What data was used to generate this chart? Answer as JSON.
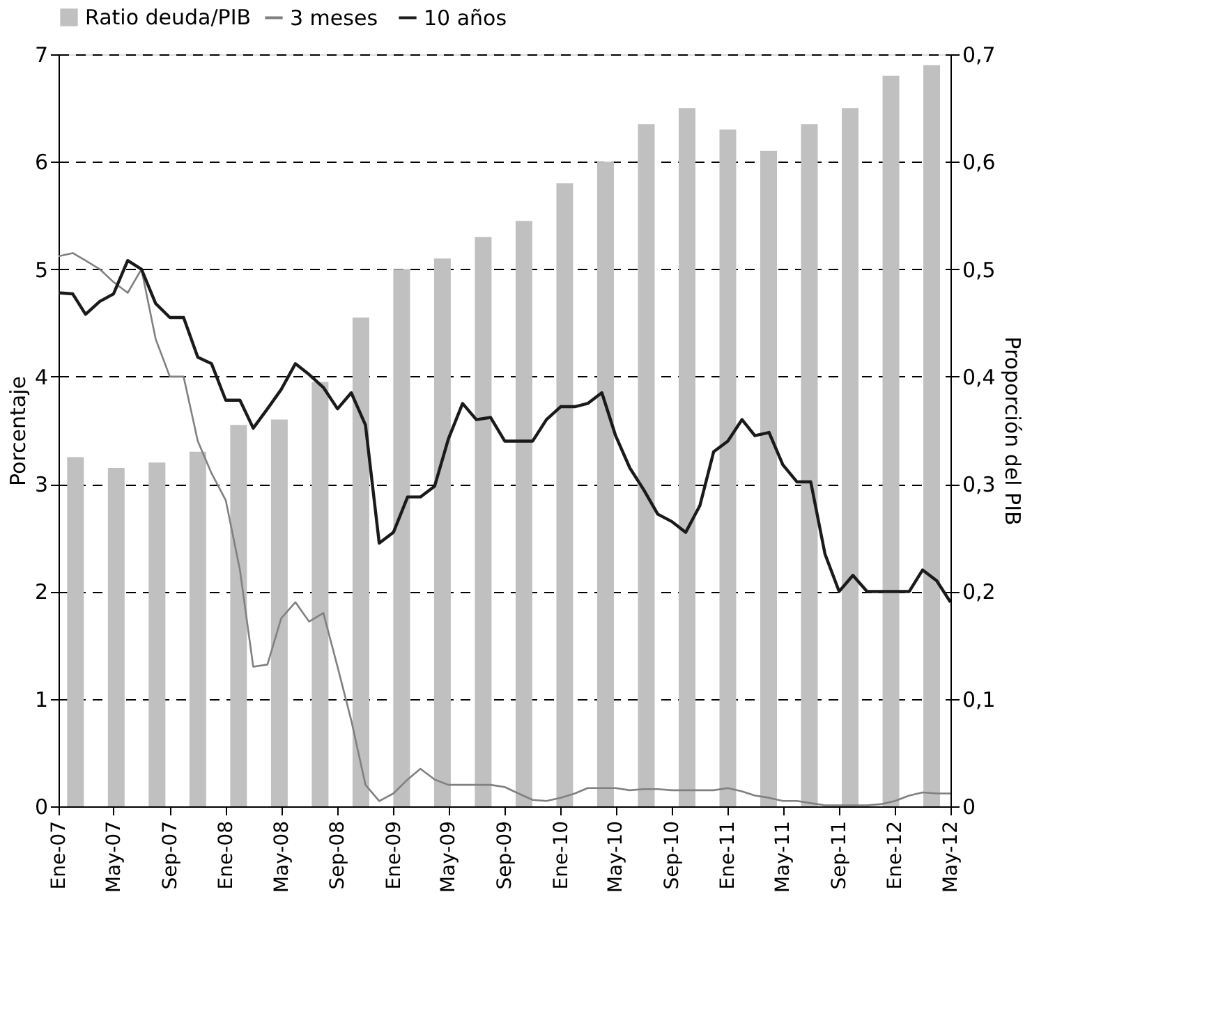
{
  "chart_data": {
    "type": "line",
    "x": [
      "2007-01",
      "2007-02",
      "2007-03",
      "2007-04",
      "2007-05",
      "2007-06",
      "2007-07",
      "2007-08",
      "2007-09",
      "2007-10",
      "2007-11",
      "2007-12",
      "2008-01",
      "2008-02",
      "2008-03",
      "2008-04",
      "2008-05",
      "2008-06",
      "2008-07",
      "2008-08",
      "2008-09",
      "2008-10",
      "2008-11",
      "2008-12",
      "2009-01",
      "2009-02",
      "2009-03",
      "2009-04",
      "2009-05",
      "2009-06",
      "2009-07",
      "2009-08",
      "2009-09",
      "2009-10",
      "2009-11",
      "2009-12",
      "2010-01",
      "2010-02",
      "2010-03",
      "2010-04",
      "2010-05",
      "2010-06",
      "2010-07",
      "2010-08",
      "2010-09",
      "2010-10",
      "2010-11",
      "2010-12",
      "2011-01",
      "2011-02",
      "2011-03",
      "2011-04",
      "2011-05",
      "2011-06",
      "2011-07",
      "2011-08",
      "2011-09",
      "2011-10",
      "2011-11",
      "2011-12",
      "2012-01",
      "2012-02",
      "2012-03",
      "2012-04",
      "2012-05"
    ],
    "series": [
      {
        "name": "Ratio deuda/PIB",
        "type": "bar",
        "axis": "y2",
        "color": "#c0c0c0",
        "x": [
          "2007-02-07",
          "2007-05-07",
          "2007-08-04",
          "2007-11-01",
          "2008-01-29",
          "2008-04-27",
          "2008-07-25",
          "2008-10-22",
          "2009-01-19",
          "2009-04-18",
          "2009-07-16",
          "2009-10-13",
          "2010-01-10",
          "2010-04-09",
          "2010-07-07",
          "2010-10-04",
          "2011-01-01",
          "2011-03-31",
          "2011-06-28",
          "2011-09-25",
          "2011-12-23",
          "2012-03-21"
        ],
        "values": [
          0.325,
          0.315,
          0.32,
          0.33,
          0.355,
          0.36,
          0.395,
          0.455,
          0.5,
          0.51,
          0.53,
          0.545,
          0.58,
          0.6,
          0.635,
          0.65,
          0.63,
          0.61,
          0.635,
          0.65,
          0.68,
          0.69
        ]
      },
      {
        "name": "3 meses",
        "color": "#808080",
        "values": [
          5.12,
          5.15,
          5.08,
          5.0,
          4.88,
          4.78,
          5.0,
          4.35,
          4.0,
          4.0,
          3.4,
          3.1,
          2.85,
          2.2,
          1.3,
          1.32,
          1.75,
          1.9,
          1.72,
          1.8,
          1.3,
          0.8,
          0.2,
          0.05,
          0.12,
          0.25,
          0.35,
          0.25,
          0.2,
          0.2,
          0.2,
          0.2,
          0.18,
          0.12,
          0.06,
          0.05,
          0.08,
          0.12,
          0.17,
          0.17,
          0.17,
          0.15,
          0.16,
          0.16,
          0.15,
          0.15,
          0.15,
          0.15,
          0.17,
          0.14,
          0.1,
          0.08,
          0.05,
          0.05,
          0.03,
          0.01,
          0.01,
          0.01,
          0.01,
          0.02,
          0.05,
          0.1,
          0.13,
          0.12,
          0.12
        ]
      },
      {
        "name": "10 años",
        "color": "#1a1a1a",
        "values": [
          4.78,
          4.77,
          4.58,
          4.7,
          4.77,
          5.08,
          5.0,
          4.68,
          4.55,
          4.55,
          4.18,
          4.12,
          3.78,
          3.78,
          3.52,
          3.7,
          3.88,
          4.12,
          4.02,
          3.9,
          3.7,
          3.85,
          3.55,
          2.45,
          2.55,
          2.88,
          2.88,
          2.98,
          3.42,
          3.75,
          3.6,
          3.62,
          3.4,
          3.4,
          3.4,
          3.6,
          3.72,
          3.72,
          3.75,
          3.85,
          3.45,
          3.15,
          2.95,
          2.72,
          2.65,
          2.55,
          2.8,
          3.3,
          3.4,
          3.6,
          3.45,
          3.48,
          3.18,
          3.02,
          3.02,
          2.35,
          2.0,
          2.15,
          2.0,
          2.0,
          2.0,
          2.0,
          2.2,
          2.1,
          1.9
        ]
      }
    ],
    "xlim": [
      "2007-01",
      "2012-05"
    ],
    "xticks": [
      {
        "value": "2007-01",
        "label": "Ene-07"
      },
      {
        "value": "2007-05",
        "label": "May-07"
      },
      {
        "value": "2007-09",
        "label": "Sep-07"
      },
      {
        "value": "2008-01",
        "label": "Ene-08"
      },
      {
        "value": "2008-05",
        "label": "May-08"
      },
      {
        "value": "2008-09",
        "label": "Sep-08"
      },
      {
        "value": "2009-01",
        "label": "Ene-09"
      },
      {
        "value": "2009-05",
        "label": "May-09"
      },
      {
        "value": "2009-09",
        "label": "Sep-09"
      },
      {
        "value": "2010-01",
        "label": "Ene-10"
      },
      {
        "value": "2010-05",
        "label": "May-10"
      },
      {
        "value": "2010-09",
        "label": "Sep-10"
      },
      {
        "value": "2011-01",
        "label": "Ene-11"
      },
      {
        "value": "2011-05",
        "label": "May-11"
      },
      {
        "value": "2011-09",
        "label": "Sep-11"
      },
      {
        "value": "2012-01",
        "label": "Ene-12"
      },
      {
        "value": "2012-05",
        "label": "May-12"
      }
    ],
    "ylim": [
      0,
      7
    ],
    "yticks": [
      0,
      1,
      2,
      3,
      4,
      5,
      6,
      7
    ],
    "y2lim": [
      0,
      0.7
    ],
    "y2ticks": [
      0,
      {
        "value": 0.1,
        "label": "0,1"
      },
      {
        "value": 0.2,
        "label": "0,2"
      },
      {
        "value": 0.3,
        "label": "0,3"
      },
      {
        "value": 0.4,
        "label": "0,4"
      },
      {
        "value": 0.5,
        "label": "0,5"
      },
      {
        "value": 0.6,
        "label": "0,6"
      },
      {
        "value": 0.7,
        "label": "0,7"
      }
    ],
    "ylabel": "Porcentaje",
    "y2label": "Proporción del PIB",
    "grid": "y",
    "legend": "top"
  }
}
